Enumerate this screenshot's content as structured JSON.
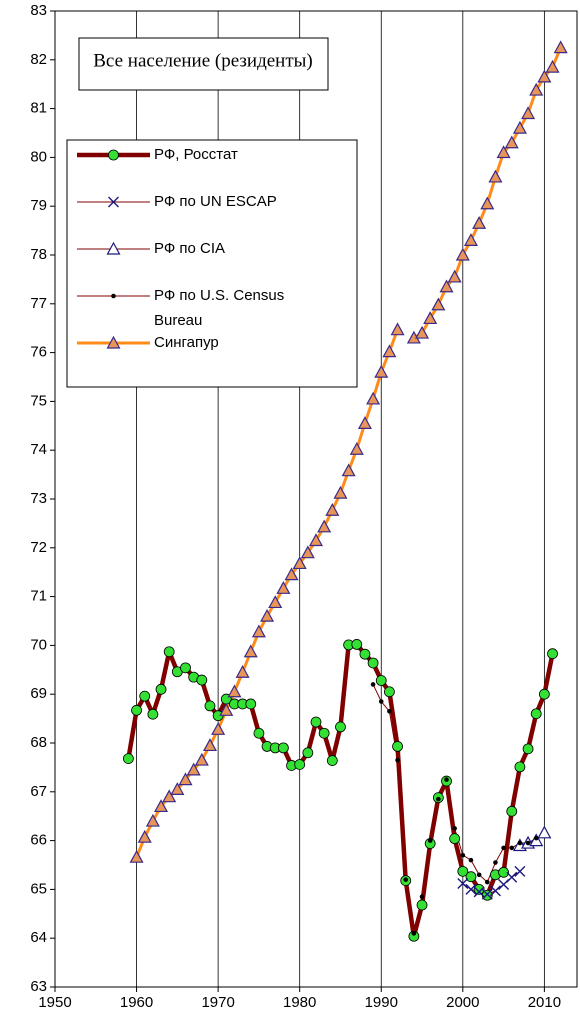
{
  "chart_data": {
    "type": "line",
    "title": "Все население (резиденты)",
    "xlim": [
      1950,
      2014
    ],
    "xticks": [
      1950,
      1960,
      1970,
      1980,
      1990,
      2000,
      2010
    ],
    "ylim": [
      63,
      83
    ],
    "yticks": [
      63,
      64,
      65,
      66,
      67,
      68,
      69,
      70,
      71,
      72,
      73,
      74,
      75,
      76,
      77,
      78,
      79,
      80,
      81,
      82,
      83
    ],
    "grid": true,
    "series": [
      {
        "name": "РФ, Росстат",
        "color": "#800000",
        "marker": "circle",
        "marker_color": "#33e033",
        "x": [
          1959,
          1960,
          1961,
          1962,
          1963,
          1964,
          1965,
          1966,
          1967,
          1968,
          1969,
          1970,
          1971,
          1972,
          1973,
          1974,
          1975,
          1976,
          1977,
          1978,
          1979,
          1980,
          1981,
          1982,
          1983,
          1984,
          1985,
          1986,
          1987,
          1988,
          1989,
          1990,
          1991,
          1992,
          1993,
          1994,
          1995,
          1996,
          1997,
          1998,
          1999,
          2000,
          2001,
          2002,
          2003,
          2004,
          2005,
          2006,
          2007,
          2008,
          2009,
          2010,
          2011
        ],
        "values": [
          67.68,
          68.67,
          68.96,
          68.59,
          69.1,
          69.87,
          69.46,
          69.54,
          69.35,
          69.29,
          68.76,
          68.56,
          68.9,
          68.8,
          68.8,
          68.8,
          68.2,
          67.93,
          67.9,
          67.9,
          67.54,
          67.56,
          67.8,
          68.43,
          68.2,
          67.64,
          68.33,
          70.01,
          70.02,
          69.82,
          69.64,
          69.28,
          69.05,
          67.93,
          65.18,
          64.04,
          64.68,
          65.94,
          66.88,
          67.22,
          66.04,
          65.37,
          65.26,
          65.0,
          64.88,
          65.3,
          65.35,
          66.6,
          67.51,
          67.88,
          68.6,
          69.0,
          69.83
        ]
      },
      {
        "name": "РФ по UN ESCAP",
        "color": "#800000",
        "marker": "x",
        "marker_color": "#1a1a80",
        "x": [
          2000,
          2001,
          2002,
          2003,
          2004,
          2005,
          2006,
          2007
        ],
        "values": [
          65.12,
          65.0,
          64.95,
          64.9,
          64.97,
          65.1,
          65.25,
          65.37
        ]
      },
      {
        "name": "РФ по CIA",
        "color": "#800000",
        "marker": "triangle-open",
        "marker_color": "#1a1a80",
        "x": [
          2007,
          2008,
          2009,
          2010
        ],
        "values": [
          65.9,
          65.95,
          66.0,
          66.16
        ]
      },
      {
        "name": "РФ по U.S. Census Bureau",
        "color": "#800000",
        "marker": "dot",
        "marker_color": "#000000",
        "x": [
          1989,
          1990,
          1991,
          1992,
          1993,
          1994,
          1995,
          1996,
          1997,
          1998,
          1999,
          2000,
          2001,
          2002,
          2003,
          2004,
          2005,
          2006,
          2007,
          2008,
          2009
        ],
        "values": [
          69.2,
          68.85,
          68.65,
          67.65,
          65.2,
          64.1,
          64.85,
          66.0,
          66.85,
          67.25,
          66.25,
          65.7,
          65.6,
          65.3,
          65.15,
          65.55,
          65.85,
          65.85,
          65.95,
          65.95,
          66.05
        ]
      },
      {
        "name": "Сингапур",
        "color": "#ff8c1a",
        "marker": "triangle",
        "marker_color": "#e8955a",
        "x": [
          1960,
          1961,
          1962,
          1963,
          1964,
          1965,
          1966,
          1967,
          1968,
          1969,
          1970,
          1971,
          1972,
          1973,
          1974,
          1975,
          1976,
          1977,
          1978,
          1979,
          1980,
          1981,
          1982,
          1983,
          1984,
          1985,
          1986,
          1987,
          1988,
          1989,
          1990,
          1991,
          1992,
          1993,
          1994,
          1995,
          1996,
          1997,
          1998,
          1999,
          2000,
          2001,
          2002,
          2003,
          2004,
          2005,
          2006,
          2007,
          2008,
          2009,
          2010,
          2011,
          2012
        ],
        "values": [
          65.66,
          66.07,
          66.4,
          66.7,
          66.9,
          67.05,
          67.25,
          67.45,
          67.65,
          67.95,
          68.28,
          68.67,
          69.05,
          69.45,
          69.87,
          70.28,
          70.6,
          70.88,
          71.17,
          71.45,
          71.68,
          71.9,
          72.15,
          72.43,
          72.77,
          73.12,
          73.58,
          74.02,
          74.55,
          75.05,
          75.6,
          76.02,
          76.47,
          null,
          76.3,
          76.4,
          76.7,
          76.98,
          77.35,
          77.55,
          78.0,
          78.3,
          78.65,
          79.05,
          79.6,
          80.1,
          80.3,
          80.6,
          80.9,
          81.38,
          81.65,
          81.85,
          82.25
        ]
      }
    ]
  }
}
